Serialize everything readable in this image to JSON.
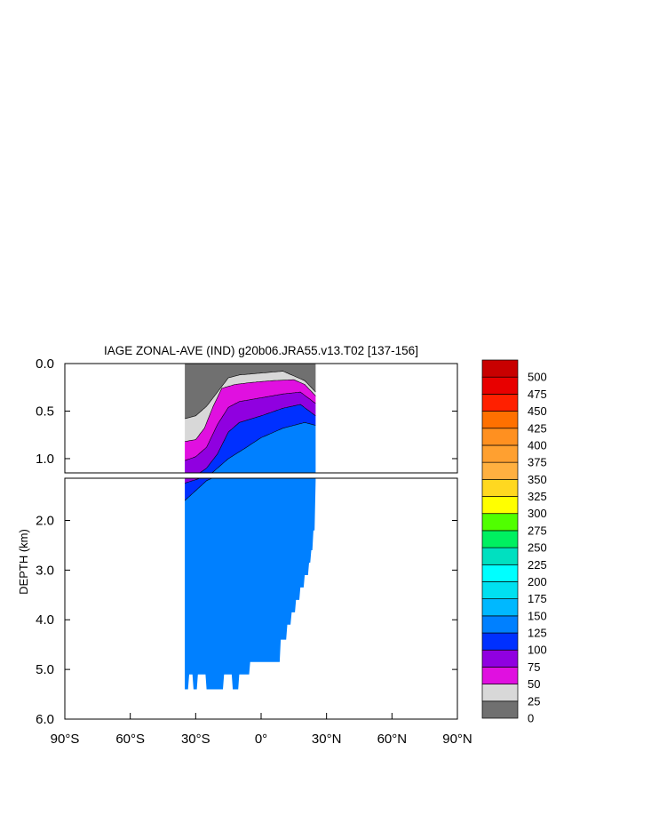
{
  "chart_data": {
    "type": "heatmap",
    "title": "IAGE ZONAL-AVE (IND) g20b06.JRA55.v13.T02 [137-156]",
    "ylabel": "DEPTH (km)",
    "xlim": [
      -90,
      90
    ],
    "upper_panel_ylim": [
      0,
      1.15
    ],
    "lower_panel_ylim": [
      1.15,
      6.0
    ],
    "x_ticks": [
      {
        "value": -90,
        "label": "90°S"
      },
      {
        "value": -60,
        "label": "60°S"
      },
      {
        "value": -30,
        "label": "30°S"
      },
      {
        "value": 0,
        "label": "0°"
      },
      {
        "value": 30,
        "label": "30°N"
      },
      {
        "value": 60,
        "label": "60°N"
      },
      {
        "value": 90,
        "label": "90°N"
      }
    ],
    "upper_y_ticks": [
      {
        "value": 0.0,
        "label": "0.0"
      },
      {
        "value": 0.5,
        "label": "0.5"
      },
      {
        "value": 1.0,
        "label": "1.0"
      }
    ],
    "lower_y_ticks": [
      {
        "value": 2.0,
        "label": "2.0"
      },
      {
        "value": 3.0,
        "label": "3.0"
      },
      {
        "value": 4.0,
        "label": "4.0"
      },
      {
        "value": 5.0,
        "label": "5.0"
      },
      {
        "value": 6.0,
        "label": "6.0"
      }
    ],
    "colorbar": {
      "levels": [
        "0",
        "25",
        "50",
        "75",
        "100",
        "125",
        "150",
        "175",
        "200",
        "225",
        "250",
        "275",
        "300",
        "325",
        "350",
        "375",
        "400",
        "425",
        "450",
        "475",
        "500"
      ],
      "colors": [
        "#707070",
        "#d8d8d8",
        "#e010e0",
        "#9000e0",
        "#0030ff",
        "#0080ff",
        "#00b8ff",
        "#00e0f0",
        "#00ffff",
        "#00e0c0",
        "#00f060",
        "#50ff00",
        "#ffff00",
        "#ffd820",
        "#ffb040",
        "#ffa030",
        "#ff9020",
        "#ff7000",
        "#ff2000",
        "#e80000",
        "#c80000"
      ]
    },
    "fields": {
      "land_lat_min": -35,
      "land_lat_max": 25,
      "surface_layer_bottom": [
        {
          "lat": -35,
          "depth": 0.58
        },
        {
          "lat": -30,
          "depth": 0.55
        },
        {
          "lat": -25,
          "depth": 0.45
        },
        {
          "lat": -20,
          "depth": 0.3
        },
        {
          "lat": -15,
          "depth": 0.15
        },
        {
          "lat": -10,
          "depth": 0.12
        },
        {
          "lat": 0,
          "depth": 0.1
        },
        {
          "lat": 10,
          "depth": 0.08
        },
        {
          "lat": 20,
          "depth": 0.18
        },
        {
          "lat": 25,
          "depth": 0.3
        }
      ],
      "contours_age": [
        {
          "age": 50,
          "path": [
            [
              -35,
              0.82
            ],
            [
              -30,
              0.8
            ],
            [
              -26,
              0.68
            ],
            [
              -22,
              0.45
            ],
            [
              -18,
              0.26
            ],
            [
              -12,
              0.22
            ],
            [
              -5,
              0.2
            ],
            [
              5,
              0.18
            ],
            [
              15,
              0.17
            ],
            [
              20,
              0.22
            ],
            [
              25,
              0.34
            ]
          ]
        },
        {
          "age": 75,
          "path": [
            [
              -35,
              1.02
            ],
            [
              -30,
              0.98
            ],
            [
              -25,
              0.88
            ],
            [
              -20,
              0.64
            ],
            [
              -15,
              0.46
            ],
            [
              -10,
              0.4
            ],
            [
              0,
              0.36
            ],
            [
              10,
              0.32
            ],
            [
              18,
              0.3
            ],
            [
              25,
              0.42
            ]
          ]
        },
        {
          "age": 100,
          "path": [
            [
              -35,
              1.25
            ],
            [
              -30,
              1.18
            ],
            [
              -25,
              1.1
            ],
            [
              -20,
              0.95
            ],
            [
              -15,
              0.72
            ],
            [
              -10,
              0.62
            ],
            [
              0,
              0.55
            ],
            [
              10,
              0.47
            ],
            [
              18,
              0.43
            ],
            [
              25,
              0.55
            ]
          ]
        },
        {
          "age": 125,
          "path": [
            [
              -35,
              1.6
            ],
            [
              -30,
              1.4
            ],
            [
              -25,
              1.2
            ],
            [
              -15,
              1.0
            ],
            [
              -8,
              0.9
            ],
            [
              0,
              0.78
            ],
            [
              10,
              0.68
            ],
            [
              20,
              0.62
            ],
            [
              25,
              0.65
            ]
          ]
        }
      ],
      "bottom_depth": [
        {
          "lat": -35,
          "depth": 5.4
        },
        {
          "lat": -33,
          "depth": 5.1
        },
        {
          "lat": -31,
          "depth": 5.4
        },
        {
          "lat": -29,
          "depth": 5.1
        },
        {
          "lat": -25,
          "depth": 5.4
        },
        {
          "lat": -17,
          "depth": 5.1
        },
        {
          "lat": -13,
          "depth": 5.4
        },
        {
          "lat": -10,
          "depth": 5.1
        },
        {
          "lat": -5,
          "depth": 4.85
        },
        {
          "lat": 9,
          "depth": 4.4
        },
        {
          "lat": 12,
          "depth": 4.1
        },
        {
          "lat": 14,
          "depth": 3.85
        },
        {
          "lat": 16,
          "depth": 3.6
        },
        {
          "lat": 18,
          "depth": 3.35
        },
        {
          "lat": 20,
          "depth": 3.1
        },
        {
          "lat": 22,
          "depth": 2.85
        },
        {
          "lat": 23,
          "depth": 2.6
        },
        {
          "lat": 24,
          "depth": 2.2
        },
        {
          "lat": 25,
          "depth": 1.2
        }
      ]
    }
  }
}
